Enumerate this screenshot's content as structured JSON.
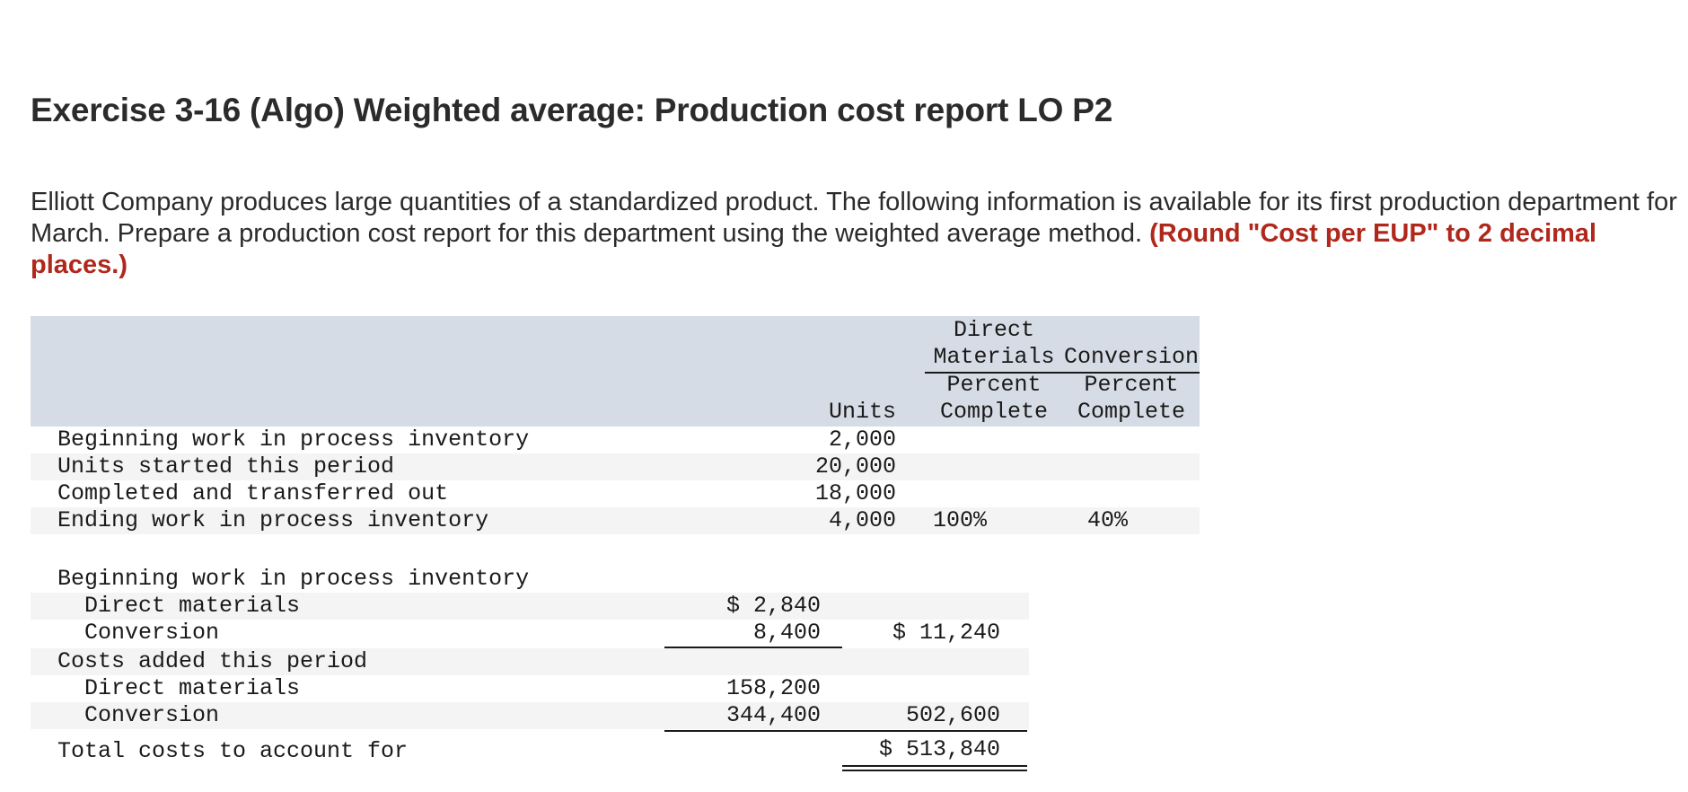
{
  "title": "Exercise 3-16 (Algo) Weighted average: Production cost report LO P2",
  "intro": {
    "text": "Elliott Company produces large quantities of a standardized product. The following information is available for its first production department for March. Prepare a production cost report for this department using the weighted average method.",
    "note": "(Round \"Cost per EUP\" to 2 decimal places.)"
  },
  "units_table": {
    "headers": {
      "units": "Units",
      "dm_top": "Direct",
      "dm_bottom": "Materials",
      "conv": "Conversion",
      "pct1": "Percent",
      "pct2": "Complete"
    },
    "rows": [
      {
        "label": "Beginning work in process inventory",
        "units": "2,000",
        "dm": "",
        "conv": ""
      },
      {
        "label": "Units started this period",
        "units": "20,000",
        "dm": "",
        "conv": ""
      },
      {
        "label": "Completed and transferred out",
        "units": "18,000",
        "dm": "",
        "conv": ""
      },
      {
        "label": "Ending work in process inventory",
        "units": "4,000",
        "dm": "100%",
        "conv": "40%"
      }
    ]
  },
  "cost_table": {
    "beginning_label": "Beginning work in process inventory",
    "beg_dm_label": "Direct materials",
    "beg_dm_value": "$ 2,840",
    "beg_conv_label": "Conversion",
    "beg_conv_value": "8,400",
    "beg_total": "$ 11,240",
    "added_label": "Costs added this period",
    "add_dm_label": "Direct materials",
    "add_dm_value": "158,200",
    "add_conv_label": "Conversion",
    "add_conv_value": "344,400",
    "add_total": "502,600",
    "total_label": "Total costs to account for",
    "total_value": "$ 513,840"
  }
}
